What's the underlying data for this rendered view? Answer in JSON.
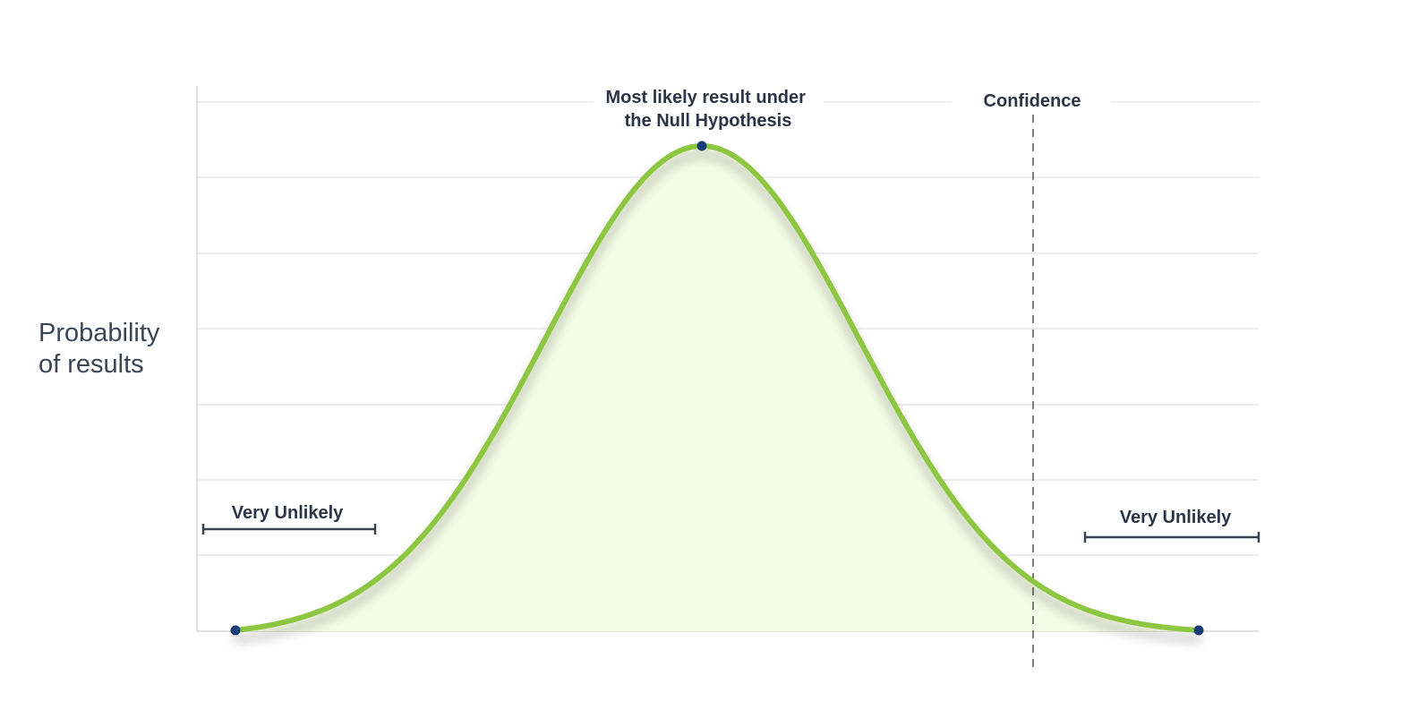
{
  "diagram": {
    "type": "normal-distribution-diagram",
    "ylabel_lines": [
      "Probability",
      "of results"
    ],
    "peak_label_lines": [
      "Most likely result under",
      "the Null Hypothesis"
    ],
    "confidence_label": "Confidence",
    "left_tail_label": "Very Unlikely",
    "right_tail_label": "Very Unlikely",
    "colors": {
      "curve": "#8dc63f",
      "fill": "#f4fbe6",
      "gridline": "#e2e2e2",
      "points": "#143c78",
      "text": "#2c3445",
      "bracket": "#3a4150",
      "confidence_line": "#555555"
    },
    "grid": true,
    "gridline_count": 7
  }
}
